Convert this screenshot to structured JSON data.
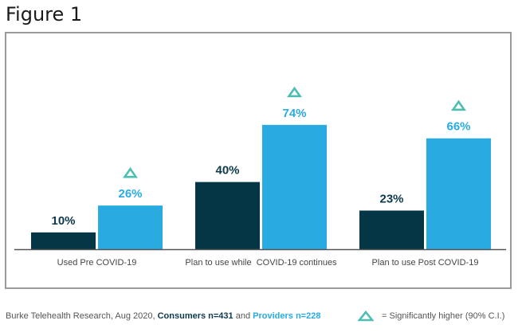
{
  "figure_title": "Figure 1",
  "colors": {
    "consumers": "#043645",
    "providers": "#29abe2",
    "significance_marker": "#4cbfb2",
    "axis": "#555555",
    "frame": "#9a9a9a"
  },
  "chart_data": {
    "type": "bar",
    "title": "Figure 1",
    "xlabel": "",
    "ylabel": "",
    "ylim": [
      0,
      100
    ],
    "grid": false,
    "categories": [
      "Used Pre COVID-19",
      "Plan to use while  COVID-19 continues",
      "Plan to use Post COVID-19"
    ],
    "series": [
      {
        "name": "Consumers",
        "values": [
          10,
          40,
          23
        ],
        "labels": [
          "10%",
          "40%",
          "23%"
        ],
        "significant": [
          false,
          false,
          false
        ]
      },
      {
        "name": "Providers",
        "values": [
          26,
          74,
          66
        ],
        "labels": [
          "26%",
          "74%",
          "66%"
        ],
        "significant": [
          true,
          true,
          true
        ]
      }
    ]
  },
  "footer": {
    "source_prefix": "Burke Telehealth Research, Aug 2020, ",
    "consumers_label": "Consumers n=431",
    "joiner": " and ",
    "providers_label": "Providers n=228"
  },
  "legend": {
    "marker_icon": "triangle-outline-icon",
    "text": "= Significantly higher (90% C.I.)"
  }
}
